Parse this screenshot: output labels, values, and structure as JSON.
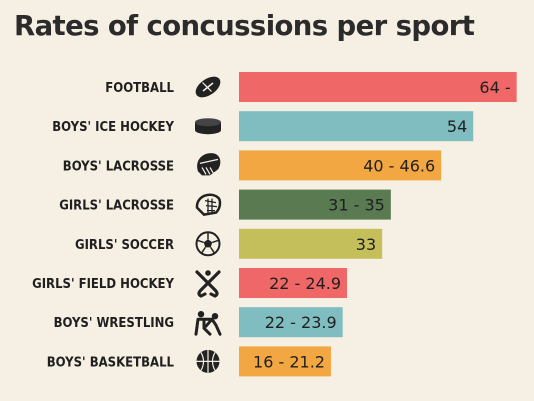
{
  "chart_data": {
    "type": "bar",
    "orientation": "horizontal",
    "title": "Rates of concussions per sport",
    "xlabel": "",
    "ylabel": "",
    "xlim": [
      0,
      68
    ],
    "grid": false,
    "legend": "none",
    "categories": [
      "FOOTBALL",
      "BOYS' ICE HOCKEY",
      "BOYS' LACROSSE",
      "GIRLS' LACROSSE",
      "GIRLS' SOCCER",
      "GIRLS' FIELD HOCKEY",
      "BOYS' WRESTLING",
      "BOYS' BASKETBALL"
    ],
    "values": [
      64,
      54,
      46.6,
      35,
      33,
      24.9,
      23.9,
      21.2
    ],
    "value_labels": [
      "64 -",
      "54",
      "40 - 46.6",
      "31 - 35",
      "33",
      "22 - 24.9",
      "22 - 23.9",
      "16 - 21.2"
    ],
    "icons": [
      "football-icon",
      "hockey-puck-icon",
      "lacrosse-helmet-icon",
      "girls-lacrosse-helmet-icon",
      "soccer-ball-icon",
      "field-hockey-sticks-icon",
      "wrestling-icon",
      "basketball-icon"
    ],
    "colors": [
      "#f06767",
      "#7fbdc1",
      "#f2a742",
      "#5a7a52",
      "#c4bf5b",
      "#f06767",
      "#7fbdc1",
      "#f2a742"
    ]
  }
}
